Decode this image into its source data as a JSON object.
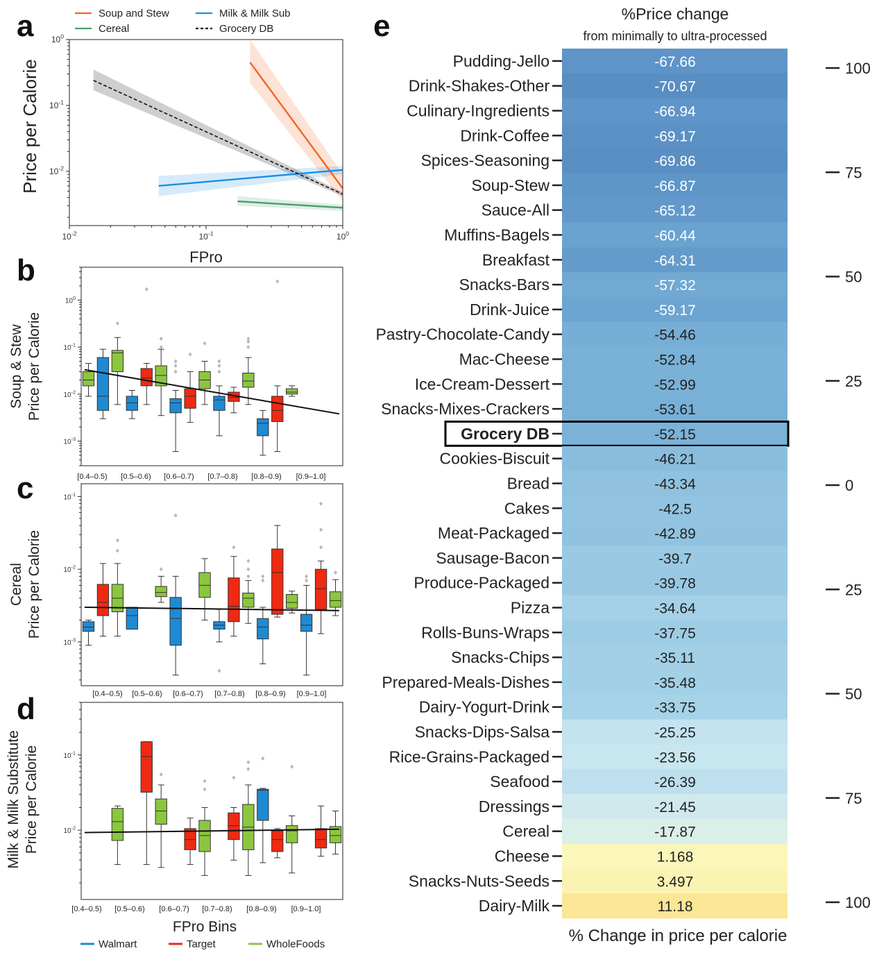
{
  "panel_letters": {
    "a": "a",
    "b": "b",
    "c": "c",
    "d": "d",
    "e": "e"
  },
  "chart_data": [
    {
      "panel": "a",
      "type": "line",
      "xscale": "log",
      "yscale": "log",
      "xlim": [
        0.01,
        1
      ],
      "ylim": [
        0.0015,
        1
      ],
      "xlabel": "FPro",
      "ylabel": "Price per Calorie",
      "xticks": [
        "10^-2",
        "10^-1",
        "10^0"
      ],
      "yticks": [
        "10^-2",
        "10^-1",
        "10^0"
      ],
      "legend_position": "top",
      "series": [
        {
          "name": "Soup and Stew",
          "color": "#f26522",
          "x": [
            0.21,
            1.0
          ],
          "y": [
            0.45,
            0.0055
          ],
          "band_upper": [
            1.0,
            0.009
          ],
          "band_lower": [
            0.22,
            0.0035
          ]
        },
        {
          "name": "Milk & Milk Sub",
          "color": "#1a8fe3",
          "x": [
            0.045,
            1.0
          ],
          "y": [
            0.006,
            0.0105
          ],
          "band_upper": [
            0.0085,
            0.012
          ],
          "band_lower": [
            0.0042,
            0.009
          ]
        },
        {
          "name": "Cereal",
          "color": "#4a9e6b",
          "x": [
            0.17,
            1.0
          ],
          "y": [
            0.0035,
            0.0028
          ],
          "band_upper": [
            0.0042,
            0.0031
          ],
          "band_lower": [
            0.003,
            0.0025
          ]
        },
        {
          "name": "Grocery DB",
          "color": "#111111",
          "dashed": true,
          "x": [
            0.015,
            1.0
          ],
          "y": [
            0.24,
            0.0045
          ],
          "band_upper": [
            0.35,
            0.0048
          ],
          "band_lower": [
            0.17,
            0.0042
          ]
        }
      ]
    },
    {
      "panel": "b",
      "type": "box",
      "ylabel": "Soup & Stew\nPrice per Calorie",
      "yscale": "log",
      "ylim": [
        0.0003,
        5
      ],
      "yticks": [
        "10^-3",
        "10^-2",
        "10^-1",
        "10^0"
      ],
      "categories": [
        "[0.4–0.5)",
        "[0.5–0.6)",
        "[0.6–0.7)",
        "[0.7–0.8)",
        "[0.8–0.9)",
        "[0.9–1.0]"
      ],
      "boxes": [
        {
          "cat": 0,
          "store": "WholeFoods",
          "q1": 0.015,
          "med": 0.02,
          "q3": 0.03,
          "lo": 0.009,
          "hi": 0.045,
          "out": []
        },
        {
          "cat": 1,
          "store": "Walmart",
          "q1": 0.0045,
          "med": 0.009,
          "q3": 0.06,
          "lo": 0.003,
          "hi": 0.09,
          "out": []
        },
        {
          "cat": 2,
          "store": "WholeFoods",
          "q1": 0.03,
          "med": 0.075,
          "q3": 0.085,
          "lo": 0.006,
          "hi": 0.16,
          "out": [
            0.32
          ]
        },
        {
          "cat": 3,
          "store": "Walmart",
          "q1": 0.0045,
          "med": 0.0065,
          "q3": 0.009,
          "lo": 0.003,
          "hi": 0.012,
          "out": []
        },
        {
          "cat": 4,
          "store": "Target",
          "q1": 0.015,
          "med": 0.022,
          "q3": 0.035,
          "lo": 0.006,
          "hi": 0.045,
          "out": [
            1.7
          ]
        },
        {
          "cat": 5,
          "store": "WholeFoods",
          "q1": 0.015,
          "med": 0.025,
          "q3": 0.04,
          "lo": 0.0035,
          "hi": 0.09,
          "out": [
            0.1,
            0.15
          ]
        },
        {
          "cat": 6,
          "store": "Walmart",
          "q1": 0.004,
          "med": 0.0065,
          "q3": 0.008,
          "lo": 0.0006,
          "hi": 0.012,
          "out": [
            0.03,
            0.04,
            0.05
          ]
        },
        {
          "cat": 7,
          "store": "Target",
          "q1": 0.005,
          "med": 0.009,
          "q3": 0.013,
          "lo": 0.0025,
          "hi": 0.03,
          "out": [
            0.07
          ]
        },
        {
          "cat": 8,
          "store": "WholeFoods",
          "q1": 0.013,
          "med": 0.02,
          "q3": 0.03,
          "lo": 0.006,
          "hi": 0.05,
          "out": [
            0.12
          ]
        },
        {
          "cat": 9,
          "store": "Walmart",
          "q1": 0.0045,
          "med": 0.0075,
          "q3": 0.009,
          "lo": 0.0013,
          "hi": 0.015,
          "out": [
            0.03,
            0.04,
            0.05
          ]
        },
        {
          "cat": 10,
          "store": "Target",
          "q1": 0.007,
          "med": 0.0085,
          "q3": 0.011,
          "lo": 0.004,
          "hi": 0.014,
          "out": []
        },
        {
          "cat": 11,
          "store": "WholeFoods",
          "q1": 0.014,
          "med": 0.019,
          "q3": 0.028,
          "lo": 0.006,
          "hi": 0.06,
          "out": [
            0.1,
            0.13,
            0.15
          ]
        },
        {
          "cat": 12,
          "store": "Walmart",
          "q1": 0.0013,
          "med": 0.0024,
          "q3": 0.003,
          "lo": 0.0005,
          "hi": 0.0045,
          "out": []
        },
        {
          "cat": 13,
          "store": "Target",
          "q1": 0.0026,
          "med": 0.0045,
          "q3": 0.009,
          "lo": 0.0006,
          "hi": 0.015,
          "out": [
            2.5
          ]
        },
        {
          "cat": 14,
          "store": "WholeFoods",
          "q1": 0.01,
          "med": 0.011,
          "q3": 0.013,
          "lo": 0.009,
          "hi": 0.015,
          "out": []
        }
      ],
      "trend": {
        "y_start": 0.033,
        "y_end": 0.0038
      }
    },
    {
      "panel": "c",
      "type": "box",
      "ylabel": "Cereal\nPrice per Calorie",
      "yscale": "log",
      "ylim": [
        0.00025,
        0.15
      ],
      "yticks": [
        "10^-3",
        "10^-2",
        "10^-1"
      ],
      "categories": [
        "[0.4–0.5)",
        "[0.5–0.6)",
        "[0.6–0.7)",
        "[0.7–0.8)",
        "[0.8–0.9)",
        "[0.9–1.0]"
      ],
      "boxes": [
        {
          "cat": 0,
          "store": "Walmart",
          "q1": 0.0014,
          "med": 0.0016,
          "q3": 0.0019,
          "lo": 0.0009,
          "hi": 0.002,
          "out": []
        },
        {
          "cat": 1,
          "store": "Target",
          "q1": 0.0023,
          "med": 0.0035,
          "q3": 0.0062,
          "lo": 0.0012,
          "hi": 0.012,
          "out": []
        },
        {
          "cat": 2,
          "store": "WholeFoods",
          "q1": 0.0026,
          "med": 0.004,
          "q3": 0.0062,
          "lo": 0.0012,
          "hi": 0.012,
          "out": [
            0.018,
            0.025
          ]
        },
        {
          "cat": 3,
          "store": "Walmart",
          "q1": 0.0015,
          "med": 0.0023,
          "q3": 0.003,
          "lo": 0.0015,
          "hi": 0.003,
          "out": []
        },
        {
          "cat": 5,
          "store": "WholeFoods",
          "q1": 0.0042,
          "med": 0.0048,
          "q3": 0.0058,
          "lo": 0.0035,
          "hi": 0.008,
          "out": [
            0.01
          ]
        },
        {
          "cat": 6,
          "store": "Walmart",
          "q1": 0.0009,
          "med": 0.0021,
          "q3": 0.0041,
          "lo": 0.00035,
          "hi": 0.008,
          "out": [
            0.055
          ]
        },
        {
          "cat": 8,
          "store": "WholeFoods",
          "q1": 0.0041,
          "med": 0.006,
          "q3": 0.009,
          "lo": 0.002,
          "hi": 0.014,
          "out": []
        },
        {
          "cat": 9,
          "store": "Walmart",
          "q1": 0.0015,
          "med": 0.0017,
          "q3": 0.0019,
          "lo": 0.001,
          "hi": 0.0028,
          "out": [
            0.0004
          ]
        },
        {
          "cat": 10,
          "store": "Target",
          "q1": 0.0019,
          "med": 0.0031,
          "q3": 0.0076,
          "lo": 0.0012,
          "hi": 0.015,
          "out": [
            0.02
          ]
        },
        {
          "cat": 11,
          "store": "WholeFoods",
          "q1": 0.003,
          "med": 0.004,
          "q3": 0.0047,
          "lo": 0.0018,
          "hi": 0.007,
          "out": [
            0.008,
            0.01,
            0.013
          ]
        },
        {
          "cat": 12,
          "store": "Walmart",
          "q1": 0.0011,
          "med": 0.0016,
          "q3": 0.0021,
          "lo": 0.0005,
          "hi": 0.003,
          "out": [
            0.007,
            0.008
          ]
        },
        {
          "cat": 13,
          "store": "Target",
          "q1": 0.0024,
          "med": 0.009,
          "q3": 0.019,
          "lo": 0.0022,
          "hi": 0.04,
          "out": []
        },
        {
          "cat": 14,
          "store": "WholeFoods",
          "q1": 0.0029,
          "med": 0.0035,
          "q3": 0.0045,
          "lo": 0.0025,
          "hi": 0.005,
          "out": []
        },
        {
          "cat": 15,
          "store": "Walmart",
          "q1": 0.0014,
          "med": 0.0017,
          "q3": 0.0024,
          "lo": 0.00035,
          "hi": 0.006,
          "out": [
            0.007,
            0.008
          ]
        },
        {
          "cat": 16,
          "store": "Target",
          "q1": 0.0028,
          "med": 0.0054,
          "q3": 0.01,
          "lo": 0.0013,
          "hi": 0.013,
          "out": [
            0.02,
            0.035,
            0.08
          ]
        },
        {
          "cat": 17,
          "store": "WholeFoods",
          "q1": 0.003,
          "med": 0.0037,
          "q3": 0.0049,
          "lo": 0.0023,
          "hi": 0.0072,
          "out": [
            0.009
          ]
        }
      ],
      "trend": {
        "y_start": 0.003,
        "y_end": 0.0027
      }
    },
    {
      "panel": "d",
      "type": "box",
      "ylabel": "Milk & Milk Substitute\nPrice per Calorie",
      "yscale": "log",
      "ylim": [
        0.0012,
        0.5
      ],
      "yticks": [
        "10^-2",
        "10^-1"
      ],
      "xlabel": "FPro Bins",
      "categories": [
        "[0.4–0.5)",
        "[0.5–0.6)",
        "[0.6–0.7)",
        "[0.7–0.8)",
        "[0.8–0.9)",
        "[0.9–1.0]"
      ],
      "boxes": [
        {
          "cat": 2,
          "store": "WholeFoods",
          "q1": 0.0073,
          "med": 0.013,
          "q3": 0.0195,
          "lo": 0.0035,
          "hi": 0.021,
          "out": []
        },
        {
          "cat": 4,
          "store": "Target",
          "q1": 0.032,
          "med": 0.095,
          "q3": 0.15,
          "lo": 0.0035,
          "hi": 0.15,
          "out": []
        },
        {
          "cat": 5,
          "store": "WholeFoods",
          "q1": 0.012,
          "med": 0.018,
          "q3": 0.026,
          "lo": 0.0032,
          "hi": 0.04,
          "out": [
            0.055
          ]
        },
        {
          "cat": 7,
          "store": "Target",
          "q1": 0.0055,
          "med": 0.0075,
          "q3": 0.0105,
          "lo": 0.0035,
          "hi": 0.0145,
          "out": []
        },
        {
          "cat": 8,
          "store": "WholeFoods",
          "q1": 0.0052,
          "med": 0.0085,
          "q3": 0.0135,
          "lo": 0.0025,
          "hi": 0.02,
          "out": [
            0.035,
            0.045
          ]
        },
        {
          "cat": 10,
          "store": "Target",
          "q1": 0.0075,
          "med": 0.0115,
          "q3": 0.017,
          "lo": 0.004,
          "hi": 0.02,
          "out": [
            0.05
          ]
        },
        {
          "cat": 11,
          "store": "WholeFoods",
          "q1": 0.0055,
          "med": 0.011,
          "q3": 0.022,
          "lo": 0.0025,
          "hi": 0.04,
          "out": [
            0.065,
            0.08
          ]
        },
        {
          "cat": 12,
          "store": "Walmart",
          "q1": 0.0135,
          "med": 0.034,
          "q3": 0.035,
          "lo": 0.0037,
          "hi": 0.036,
          "out": [
            0.09
          ]
        },
        {
          "cat": 13,
          "store": "Target",
          "q1": 0.0052,
          "med": 0.0075,
          "q3": 0.0098,
          "lo": 0.0043,
          "hi": 0.0105,
          "out": []
        },
        {
          "cat": 14,
          "store": "WholeFoods",
          "q1": 0.0068,
          "med": 0.0098,
          "q3": 0.0115,
          "lo": 0.0027,
          "hi": 0.0155,
          "out": [
            0.07
          ]
        },
        {
          "cat": 16,
          "store": "Target",
          "q1": 0.0058,
          "med": 0.0075,
          "q3": 0.0105,
          "lo": 0.0045,
          "hi": 0.021,
          "out": []
        },
        {
          "cat": 17,
          "store": "WholeFoods",
          "q1": 0.0068,
          "med": 0.0085,
          "q3": 0.0112,
          "lo": 0.0048,
          "hi": 0.018,
          "out": []
        }
      ],
      "trend": {
        "y_start": 0.0093,
        "y_end": 0.0103
      },
      "legend": [
        {
          "label": "Walmart",
          "color": "#1f8ad4"
        },
        {
          "label": "Target",
          "color": "#ee2a12"
        },
        {
          "label": "WholeFoods",
          "color": "#8cc63f"
        }
      ]
    },
    {
      "panel": "e",
      "type": "heatmap",
      "title": "%Price change",
      "subtitle": "from minimally to ultra-processed",
      "xlabel": "% Change in price per calorie",
      "highlight": "Grocery DB",
      "colorbar_ticks": [
        "100",
        "75",
        "50",
        "25",
        "0",
        "25",
        "50",
        "75",
        "100"
      ],
      "categories": [
        "Pudding-Jello",
        "Drink-Shakes-Other",
        "Culinary-Ingredients",
        "Drink-Coffee",
        "Spices-Seasoning",
        "Soup-Stew",
        "Sauce-All",
        "Muffins-Bagels",
        "Breakfast",
        "Snacks-Bars",
        "Drink-Juice",
        "Pastry-Chocolate-Candy",
        "Mac-Cheese",
        "Ice-Cream-Dessert",
        "Snacks-Mixes-Crackers",
        "Grocery DB",
        "Cookies-Biscuit",
        "Bread",
        "Cakes",
        "Meat-Packaged",
        "Sausage-Bacon",
        "Produce-Packaged",
        "Pizza",
        "Rolls-Buns-Wraps",
        "Snacks-Chips",
        "Prepared-Meals-Dishes",
        "Dairy-Yogurt-Drink",
        "Snacks-Dips-Salsa",
        "Rice-Grains-Packaged",
        "Seafood",
        "Dressings",
        "Cereal",
        "Cheese",
        "Snacks-Nuts-Seeds",
        "Dairy-Milk"
      ],
      "values": [
        "-67.66",
        "-70.67",
        "-66.94",
        "-69.17",
        "-69.86",
        "-66.87",
        "-65.12",
        "-60.44",
        "-64.31",
        "-57.32",
        "-59.17",
        "-54.46",
        "-52.84",
        "-52.99",
        "-53.61",
        "-52.15",
        "-46.21",
        "-43.34",
        "-42.5",
        "-42.89",
        "-39.7",
        "-39.78",
        "-34.64",
        "-37.75",
        "-35.11",
        "-35.48",
        "-33.75",
        "-25.25",
        "-23.56",
        "-26.39",
        "-21.45",
        "-17.87",
        "1.168",
        "3.497",
        "11.18"
      ]
    }
  ]
}
